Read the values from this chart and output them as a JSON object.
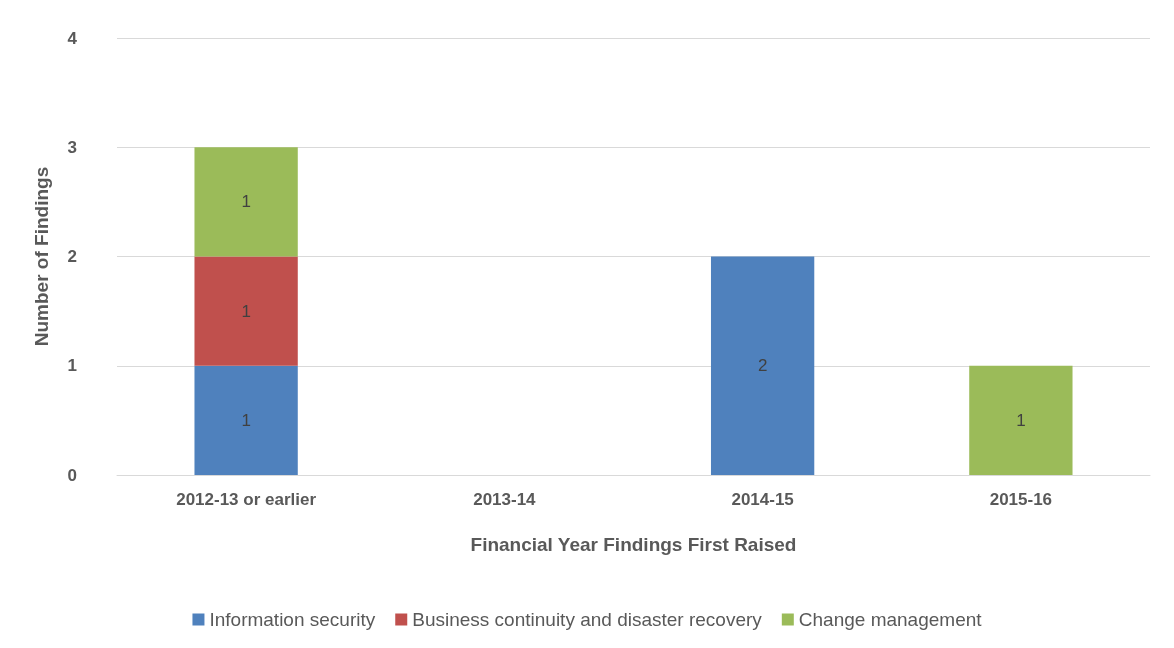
{
  "chart_data": {
    "type": "bar",
    "stacked": true,
    "xlabel": "Financial Year Findings First Raised",
    "ylabel": "Number of Findings",
    "categories": [
      "2012-13 or earlier",
      "2013-14",
      "2014-15",
      "2015-16"
    ],
    "series": [
      {
        "name": "Information security",
        "color": "#4f81bd",
        "values": [
          1,
          null,
          2,
          null
        ]
      },
      {
        "name": "Business continuity and disaster recovery",
        "color": "#c0504d",
        "values": [
          1,
          null,
          null,
          null
        ]
      },
      {
        "name": "Change management",
        "color": "#9bbb59",
        "values": [
          1,
          null,
          null,
          1
        ]
      }
    ],
    "ylim": [
      0,
      4
    ],
    "yticks": [
      0,
      1,
      2,
      3,
      4
    ],
    "grid": "y",
    "legend": "bottom",
    "data_labels": true
  }
}
